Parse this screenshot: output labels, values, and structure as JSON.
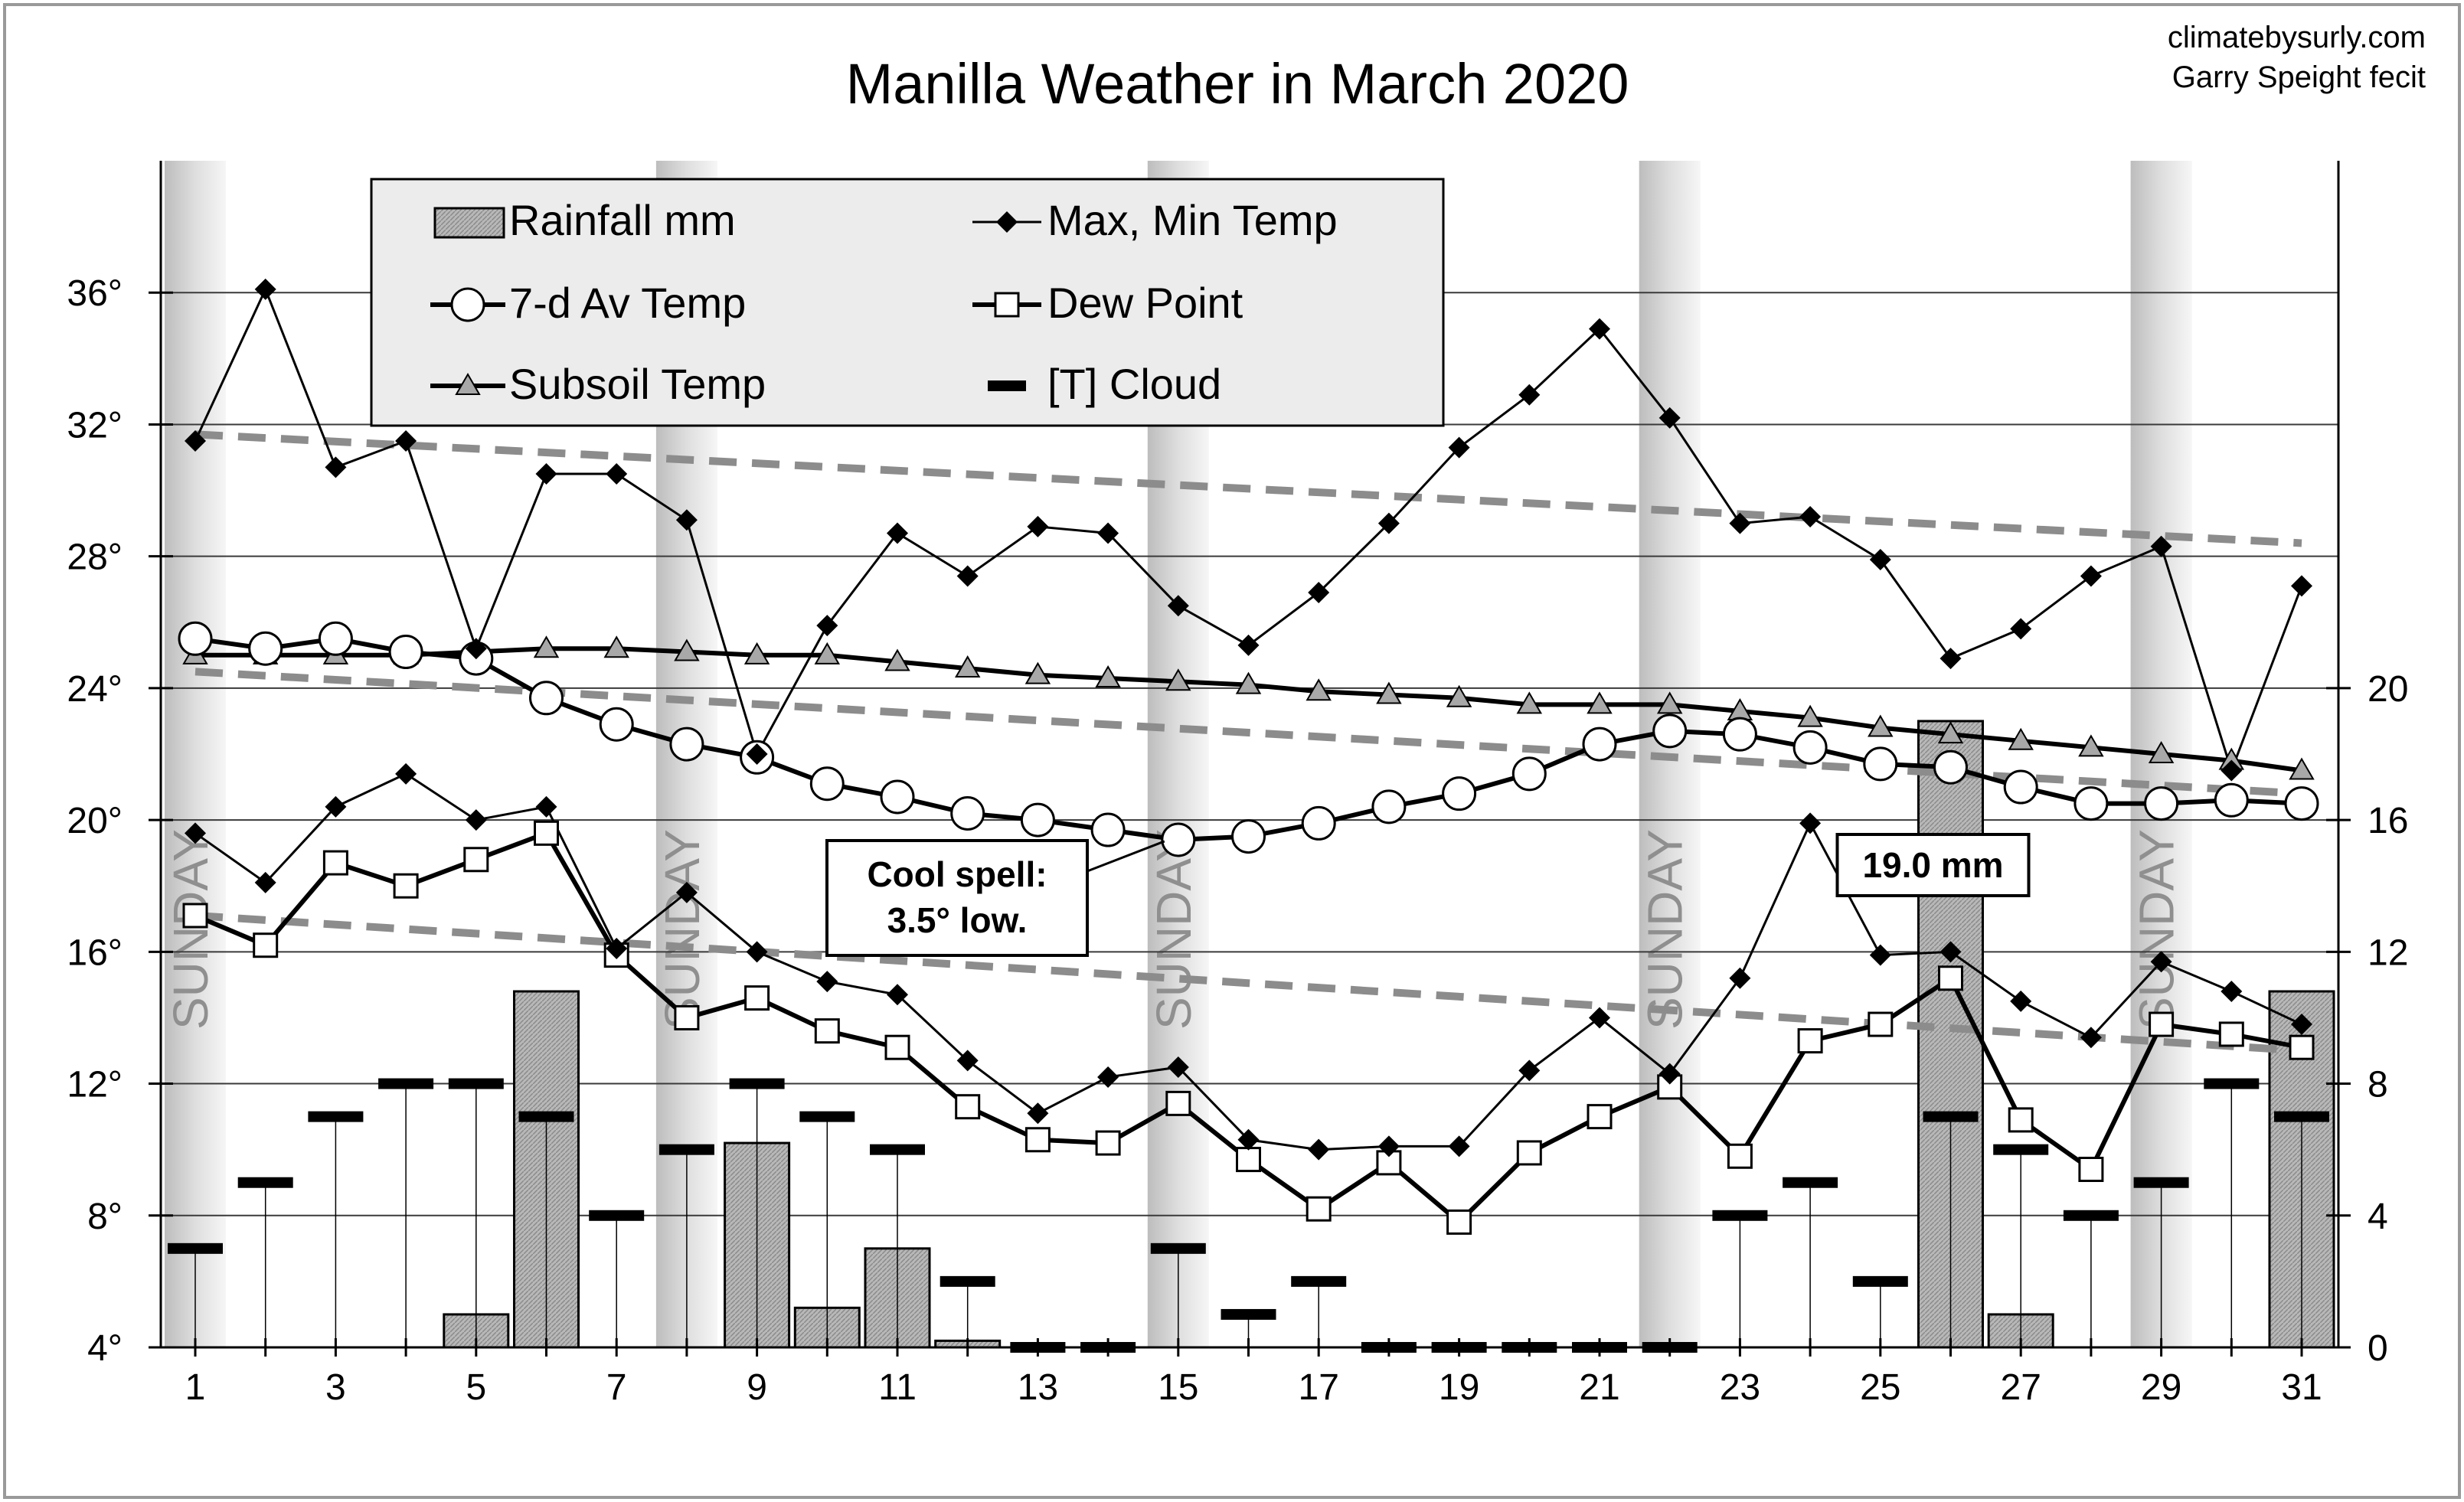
{
  "credit": {
    "line1": "climatebysurly.com",
    "line2": "Garry Speight fecit"
  },
  "chart_data": {
    "type": "line",
    "title": "Manilla Weather in March 2020",
    "x": [
      1,
      2,
      3,
      4,
      5,
      6,
      7,
      8,
      9,
      10,
      11,
      12,
      13,
      14,
      15,
      16,
      17,
      18,
      19,
      20,
      21,
      22,
      23,
      24,
      25,
      26,
      27,
      28,
      29,
      30,
      31
    ],
    "x_tick_labels": [
      "1",
      "3",
      "5",
      "7",
      "9",
      "11",
      "13",
      "15",
      "17",
      "19",
      "21",
      "23",
      "25",
      "27",
      "29",
      "31"
    ],
    "x_tick_values": [
      1,
      3,
      5,
      7,
      9,
      11,
      13,
      15,
      17,
      19,
      21,
      23,
      25,
      27,
      29,
      31
    ],
    "y_left": {
      "min": 4,
      "max": 40,
      "ticks": [
        4,
        8,
        12,
        16,
        20,
        24,
        28,
        32,
        36
      ],
      "tick_labels": [
        "4°",
        "8°",
        "12°",
        "16°",
        "20°",
        "24°",
        "28°",
        "32°",
        "36°"
      ]
    },
    "y_right": {
      "min": 0,
      "max": 36,
      "ticks": [
        0,
        4,
        8,
        12,
        16,
        20
      ],
      "tick_labels": [
        "0",
        "4",
        "8",
        "12",
        "16",
        "20"
      ]
    },
    "grid": true,
    "legend": {
      "placement": "top-left",
      "entries": [
        "Rainfall mm",
        "Max, Min Temp",
        "7-d Av Temp",
        "Dew Point",
        "Subsoil Temp",
        "[T] Cloud"
      ]
    },
    "sundays": [
      1,
      8,
      15,
      22,
      29
    ],
    "sunday_label": "SUNDAY",
    "series": [
      {
        "name": "Rainfall mm",
        "kind": "bar",
        "axis": "right",
        "values": [
          0,
          0,
          0,
          0,
          1.0,
          10.8,
          0,
          0,
          6.2,
          1.2,
          3.0,
          0.2,
          0,
          0,
          0,
          0,
          0,
          0,
          0,
          0,
          0,
          0,
          0,
          0,
          0,
          19.0,
          1.0,
          0,
          0,
          0,
          10.8
        ]
      },
      {
        "name": "Max, Min Temp",
        "kind": "max",
        "axis": "left",
        "values": [
          31.5,
          36.1,
          30.7,
          31.5,
          25.2,
          30.5,
          30.5,
          29.1,
          22.0,
          25.9,
          28.7,
          27.4,
          28.9,
          28.7,
          26.5,
          25.3,
          26.9,
          29.0,
          31.3,
          32.9,
          34.9,
          32.2,
          29.0,
          29.2,
          27.9,
          24.9,
          25.8,
          27.4,
          28.3,
          21.5,
          27.1
        ]
      },
      {
        "name": "Min Temp",
        "kind": "min",
        "axis": "left",
        "values": [
          19.6,
          18.1,
          20.4,
          21.4,
          20.0,
          20.4,
          16.1,
          17.8,
          16.0,
          15.1,
          14.7,
          12.7,
          11.1,
          12.2,
          12.5,
          10.3,
          10.0,
          10.1,
          10.1,
          12.4,
          14.0,
          12.3,
          15.2,
          19.9,
          15.9,
          16.0,
          14.5,
          13.4,
          15.7,
          14.8,
          13.8
        ]
      },
      {
        "name": "7-d Av Temp",
        "kind": "avg",
        "axis": "left",
        "values": [
          25.5,
          25.2,
          25.5,
          25.1,
          24.9,
          23.7,
          22.9,
          22.3,
          21.9,
          21.1,
          20.7,
          20.2,
          20.0,
          19.7,
          19.4,
          19.5,
          19.9,
          20.4,
          20.8,
          21.4,
          22.3,
          22.7,
          22.6,
          22.2,
          21.7,
          21.6,
          21.0,
          20.5,
          20.5,
          20.6,
          20.5
        ]
      },
      {
        "name": "Dew Point",
        "kind": "dew",
        "axis": "left",
        "values": [
          17.1,
          16.2,
          18.7,
          18.0,
          18.8,
          19.6,
          15.9,
          14.0,
          14.6,
          13.6,
          13.1,
          11.3,
          10.3,
          10.2,
          11.4,
          9.7,
          8.2,
          9.6,
          7.8,
          9.9,
          11.0,
          11.9,
          9.8,
          13.3,
          13.8,
          15.2,
          10.9,
          9.4,
          13.8,
          13.5,
          13.1
        ]
      },
      {
        "name": "Subsoil Temp",
        "kind": "soil",
        "axis": "left",
        "values": [
          25.0,
          25.0,
          25.0,
          25.0,
          25.1,
          25.2,
          25.2,
          25.1,
          25.0,
          25.0,
          24.8,
          24.6,
          24.4,
          24.3,
          24.2,
          24.1,
          23.9,
          23.8,
          23.7,
          23.5,
          23.5,
          23.5,
          23.3,
          23.1,
          22.8,
          22.6,
          22.4,
          22.2,
          22.0,
          21.8,
          21.5
        ]
      },
      {
        "name": "[T] Cloud",
        "kind": "cloud",
        "axis": "right",
        "values": [
          3,
          5,
          7,
          8,
          8,
          7,
          4,
          6,
          8,
          7,
          6,
          2,
          0,
          0,
          3,
          1,
          2,
          0,
          0,
          0,
          0,
          0,
          4,
          5,
          2,
          7,
          6,
          4,
          5,
          8,
          7
        ]
      }
    ],
    "trend_lines": [
      {
        "of": "Max, Min Temp",
        "from": [
          1,
          31.7
        ],
        "to": [
          31,
          28.4
        ]
      },
      {
        "of": "7-d Av Temp",
        "from": [
          1,
          24.5
        ],
        "to": [
          31,
          20.8
        ]
      },
      {
        "of": "Min Temp",
        "from": [
          1,
          17.1
        ],
        "to": [
          31,
          13.0
        ]
      }
    ],
    "annotations": [
      {
        "text_lines": [
          "Cool spell:",
          "3.5° low."
        ],
        "points_to": [
          15,
          19.4
        ]
      },
      {
        "text": "19.0 mm",
        "near": 26
      }
    ]
  }
}
